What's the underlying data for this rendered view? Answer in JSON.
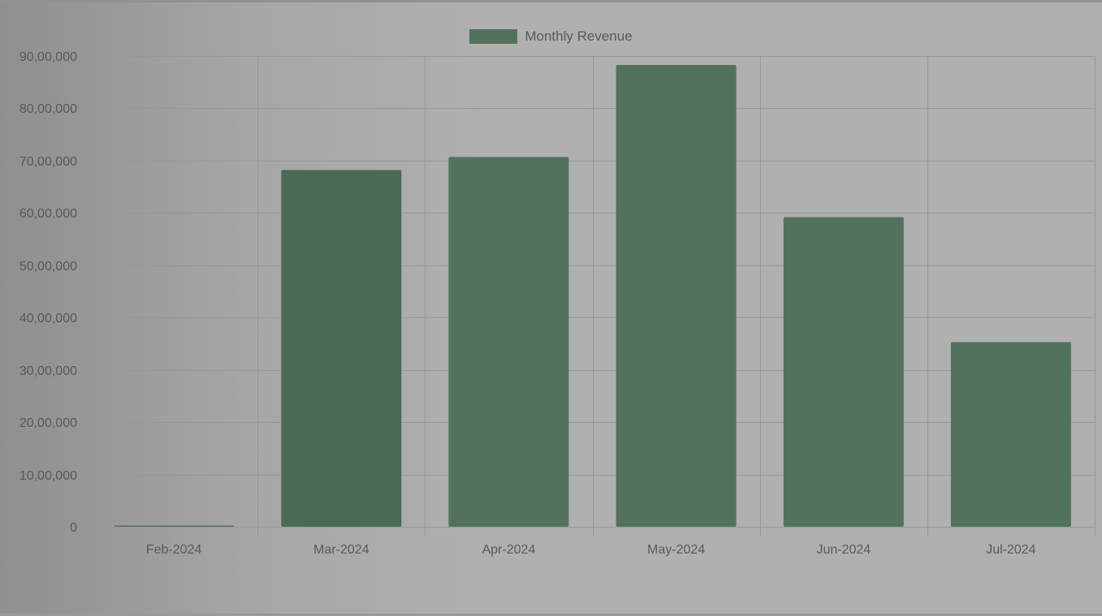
{
  "chart_data": {
    "type": "bar",
    "categories": [
      "Feb-2024",
      "Mar-2024",
      "Apr-2024",
      "May-2024",
      "Jun-2024",
      "Jul-2024"
    ],
    "series": [
      {
        "name": "Monthly Revenue",
        "values": [
          8000,
          6820000,
          7070000,
          8830000,
          5920000,
          3530000
        ]
      }
    ],
    "title": "",
    "xlabel": "",
    "ylabel": "",
    "ylim": [
      0,
      9000000
    ],
    "y_ticks": [
      "0",
      "10,00,000",
      "20,00,000",
      "30,00,000",
      "40,00,000",
      "50,00,000",
      "60,00,000",
      "70,00,000",
      "80,00,000",
      "90,00,000"
    ],
    "grid": true,
    "legend_position": "top-center",
    "colors": {
      "bar": "#52725d",
      "bar_hover": "#4a6a55",
      "grid": "#979797"
    }
  }
}
